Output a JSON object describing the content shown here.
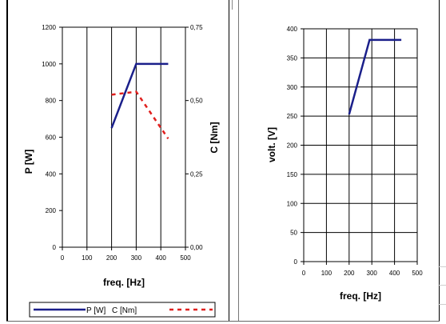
{
  "chart_data": [
    {
      "type": "line",
      "xlabel": "freq. [Hz]",
      "ylabel": "P [W]",
      "y2label": "C [Nm]",
      "xlim": [
        0,
        500
      ],
      "ylim": [
        0,
        1200
      ],
      "y2lim": [
        0,
        0.75
      ],
      "xticks": [
        "0",
        "100",
        "200",
        "300",
        "400",
        "500"
      ],
      "yticks": [
        "0",
        "200",
        "400",
        "600",
        "800",
        "1000",
        "1200"
      ],
      "y2ticks": [
        "0,00",
        "0,25",
        "0,50",
        "0,75"
      ],
      "grid": "vertical",
      "legend": "bottom",
      "series": [
        {
          "name": "P [W]",
          "axis": "left",
          "color": "#1a1f8a",
          "style": "solid",
          "x": [
            200,
            300,
            430
          ],
          "y": [
            650,
            1000,
            1000
          ]
        },
        {
          "name": "C [Nm]",
          "axis": "right",
          "color": "#e0201e",
          "style": "dashed",
          "x": [
            200,
            300,
            430
          ],
          "y": [
            0.52,
            0.53,
            0.37
          ]
        }
      ]
    },
    {
      "type": "line",
      "xlabel": "freq. [Hz]",
      "ylabel": "volt. [V]",
      "xlim": [
        0,
        500
      ],
      "ylim": [
        0,
        400
      ],
      "xticks": [
        "0",
        "100",
        "200",
        "300",
        "400",
        "500"
      ],
      "yticks": [
        "0",
        "50",
        "100",
        "150",
        "200",
        "250",
        "300",
        "350",
        "400"
      ],
      "grid": "both",
      "series": [
        {
          "color": "#1a1f8a",
          "style": "solid",
          "x": [
            200,
            290,
            430
          ],
          "y": [
            253,
            381,
            381
          ]
        }
      ]
    }
  ]
}
